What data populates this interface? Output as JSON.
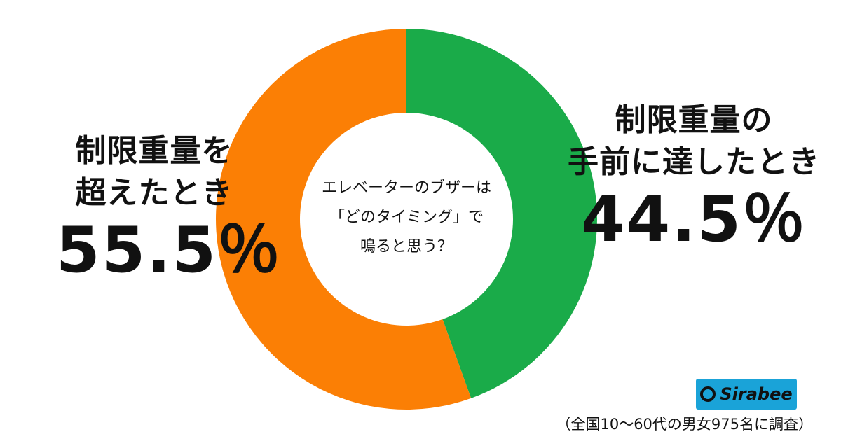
{
  "chart_data": {
    "type": "pie",
    "title": "",
    "center_text": [
      "エレベーターのブザーは",
      "「どのタイミング」で",
      "鳴ると思う？"
    ],
    "slices": [
      {
        "label_lines": [
          "制限重量の",
          "手前に達したとき"
        ],
        "value": 44.5,
        "display": "44.5％",
        "color": "#1aab49"
      },
      {
        "label_lines": [
          "制限重量を",
          "超えたとき"
        ],
        "value": 55.5,
        "display": "55.5％",
        "color": "#fb7f05"
      }
    ],
    "donut": true
  },
  "logo": {
    "text": "Sirabee"
  },
  "source_note": "（全国10〜60代の男女975名に調査）"
}
